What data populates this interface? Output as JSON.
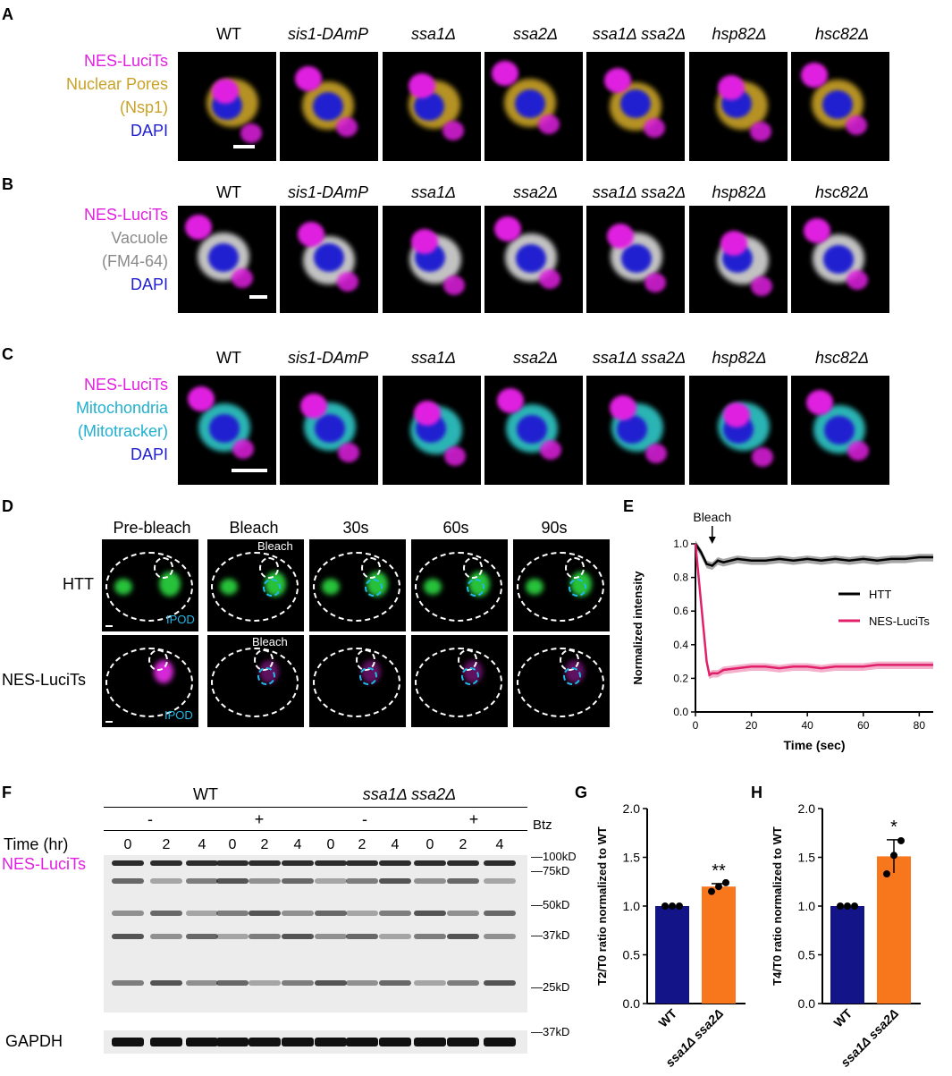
{
  "strains": [
    "WT",
    "sis1-DAmP",
    "ssa1Δ",
    "ssa2Δ",
    "ssa1Δ ssa2Δ",
    "hsp82Δ",
    "hsc82Δ"
  ],
  "panels": {
    "A": {
      "letter": "A",
      "legend": [
        "NES-LuciTs",
        "Nuclear Pores",
        "(Nsp1)",
        "DAPI"
      ],
      "colors": [
        "#e020e0",
        "#c9a227",
        "#c9a227",
        "#2020d0"
      ]
    },
    "B": {
      "letter": "B",
      "legend": [
        "NES-LuciTs",
        "Vacuole",
        "(FM4-64)",
        "DAPI"
      ],
      "colors": [
        "#e020e0",
        "#8a8a8a",
        "#8a8a8a",
        "#2020d0"
      ]
    },
    "C": {
      "letter": "C",
      "legend": [
        "NES-LuciTs",
        "Mitochondria",
        "(Mitotracker)",
        "DAPI"
      ],
      "colors": [
        "#e020e0",
        "#20b0d0",
        "#20b0d0",
        "#2020d0"
      ]
    },
    "D": {
      "letter": "D",
      "timepoints": [
        "Pre-bleach",
        "Bleach",
        "30s",
        "60s",
        "90s"
      ],
      "rows": [
        "HTT",
        "NES-LuciTs"
      ],
      "bleach_label": "Bleach",
      "ipod_label": "IPOD"
    },
    "E": {
      "letter": "E",
      "annotation": "Bleach"
    },
    "F": {
      "letter": "F",
      "groups": [
        "WT",
        "ssa1Δ ssa2Δ"
      ],
      "btz_signs": [
        "-",
        "+",
        "-",
        "+"
      ],
      "btz_label": "Btz",
      "time_label": "Time (hr)",
      "lanes": [
        "0",
        "2",
        "4",
        "0",
        "2",
        "4",
        "0",
        "2",
        "4",
        "0",
        "2",
        "4"
      ],
      "blot_label": "NES-LuciTs",
      "loading_label": "GAPDH",
      "markers": [
        "100kD",
        "75kD",
        "50kD",
        "37kD",
        "25kD"
      ],
      "gapdh_marker": "37kD"
    },
    "G": {
      "letter": "G"
    },
    "H": {
      "letter": "H"
    }
  },
  "chart_data": [
    {
      "type": "line",
      "panel": "E",
      "xlabel": "Time (sec)",
      "ylabel": "Normalized intensity",
      "xlim": [
        0,
        85
      ],
      "ylim": [
        0,
        1.0
      ],
      "xticks": [
        0,
        20,
        40,
        60,
        80
      ],
      "yticks": [
        0.0,
        0.2,
        0.4,
        0.6,
        0.8,
        1.0
      ],
      "legend_position": "right",
      "series": [
        {
          "name": "HTT",
          "color": "#000000",
          "x": [
            0,
            2,
            4,
            6,
            8,
            10,
            15,
            20,
            25,
            30,
            35,
            40,
            45,
            50,
            55,
            60,
            65,
            70,
            75,
            80,
            85
          ],
          "y": [
            1.0,
            0.95,
            0.88,
            0.87,
            0.9,
            0.89,
            0.91,
            0.9,
            0.9,
            0.91,
            0.9,
            0.91,
            0.9,
            0.91,
            0.9,
            0.91,
            0.9,
            0.91,
            0.91,
            0.92,
            0.92
          ]
        },
        {
          "name": "NES-LuciTs",
          "color": "#e0206a",
          "x": [
            0,
            2,
            4,
            5,
            6,
            8,
            10,
            15,
            20,
            25,
            30,
            35,
            40,
            45,
            50,
            55,
            60,
            65,
            70,
            75,
            80,
            85
          ],
          "y": [
            1.0,
            0.65,
            0.3,
            0.22,
            0.23,
            0.23,
            0.25,
            0.26,
            0.27,
            0.27,
            0.26,
            0.27,
            0.27,
            0.26,
            0.27,
            0.27,
            0.27,
            0.28,
            0.28,
            0.28,
            0.28,
            0.28
          ]
        }
      ]
    },
    {
      "type": "bar",
      "panel": "G",
      "categories": [
        "WT",
        "ssa1Δ ssa2Δ"
      ],
      "values": [
        1.0,
        1.2
      ],
      "points": [
        [
          1.0,
          1.0,
          1.0
        ],
        [
          1.15,
          1.2,
          1.24
        ]
      ],
      "error": [
        0,
        0.03
      ],
      "colors": [
        "#121487",
        "#f8771d"
      ],
      "ylabel": "T2/T0 ratio normalized to WT",
      "ylim": [
        0,
        2.0
      ],
      "yticks": [
        "0.0",
        "0.5",
        "1.0",
        "1.5",
        "2.0"
      ],
      "significance": "**"
    },
    {
      "type": "bar",
      "panel": "H",
      "categories": [
        "WT",
        "ssa1Δ ssa2Δ"
      ],
      "values": [
        1.0,
        1.51
      ],
      "points": [
        [
          1.0,
          1.0,
          1.0
        ],
        [
          1.33,
          1.52,
          1.67
        ]
      ],
      "error": [
        0,
        0.17
      ],
      "colors": [
        "#121487",
        "#f8771d"
      ],
      "ylabel": "T4/T0 ratio normalized to WT",
      "ylim": [
        0,
        2.0
      ],
      "yticks": [
        "0.0",
        "0.5",
        "1.0",
        "1.5",
        "2.0"
      ],
      "significance": "*"
    }
  ]
}
